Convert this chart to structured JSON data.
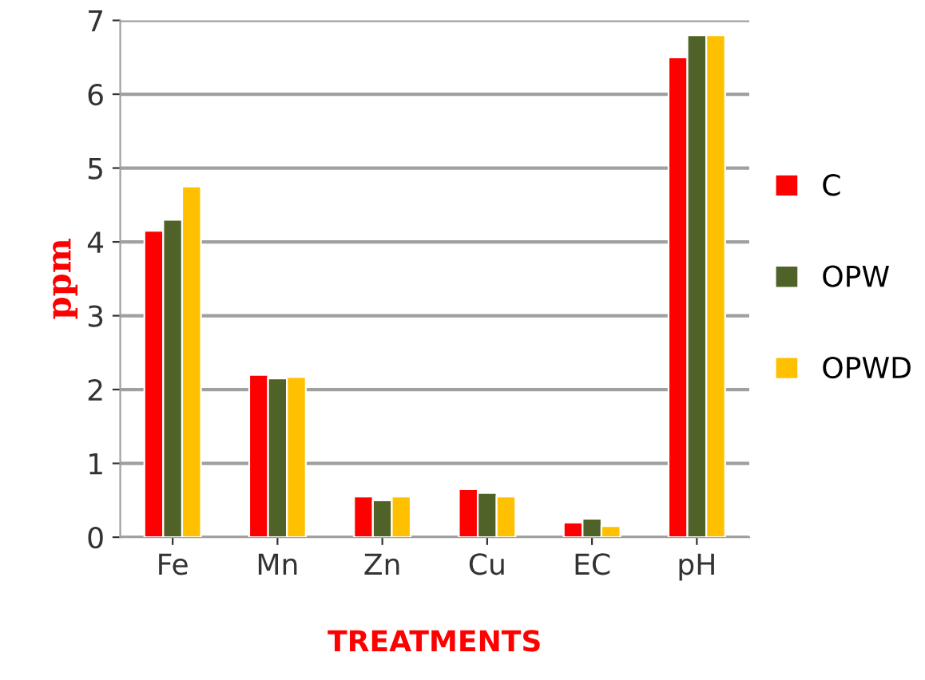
{
  "chart_data": {
    "type": "bar",
    "xlabel": "TREATMENTS",
    "ylabel": "ppm",
    "categories": [
      "Fe",
      "Mn",
      "Zn",
      "Cu",
      "EC",
      "pH"
    ],
    "series": [
      {
        "name": "C",
        "color": "#ff0000",
        "values": [
          4.15,
          2.2,
          0.55,
          0.65,
          0.2,
          6.5
        ]
      },
      {
        "name": "OPW",
        "color": "#4f6228",
        "values": [
          4.3,
          2.15,
          0.5,
          0.6,
          0.25,
          6.8
        ]
      },
      {
        "name": "OPWD",
        "color": "#ffc000",
        "values": [
          4.75,
          2.17,
          0.55,
          0.55,
          0.15,
          6.8
        ]
      }
    ],
    "ylim": [
      0,
      7
    ],
    "yticks": [
      0,
      1,
      2,
      3,
      4,
      5,
      6,
      7
    ],
    "grid": "y",
    "legend": "right"
  }
}
